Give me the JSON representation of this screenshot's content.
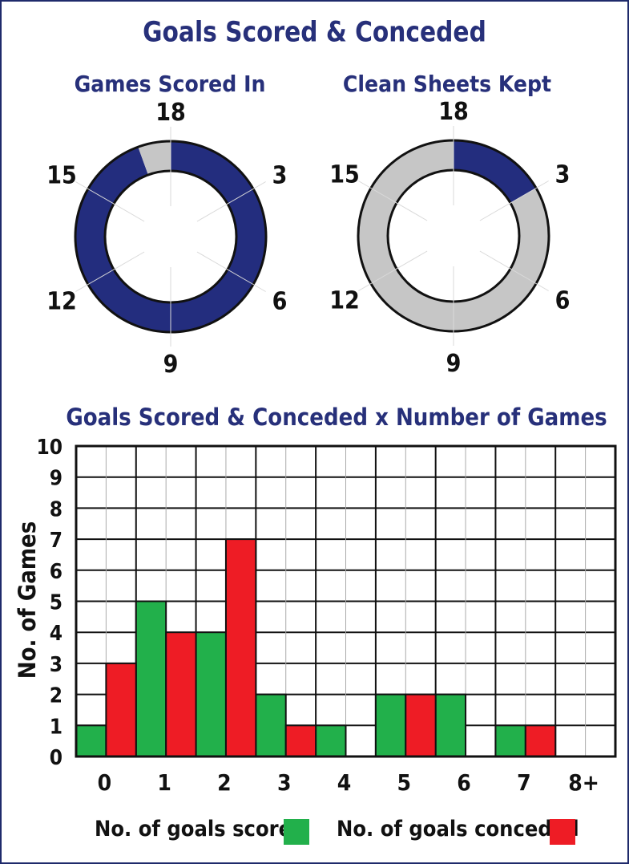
{
  "title": "Goals Scored & Conceded",
  "colors": {
    "title": "#27307a",
    "navy": "#232d7e",
    "grey": "#c6c6c6",
    "green": "#22b04b",
    "red": "#ee1c25",
    "border": "#111111"
  },
  "chart_data": [
    {
      "type": "donut",
      "title": "Games Scored In",
      "total": 18,
      "values": [
        17,
        1
      ],
      "series": [
        {
          "name": "",
          "value": 17,
          "color": "#232d7e"
        },
        {
          "name": "",
          "value": 1,
          "color": "#c6c6c6"
        }
      ],
      "tick_labels": [
        "18",
        "3",
        "6",
        "9",
        "12",
        "15"
      ]
    },
    {
      "type": "donut",
      "title": "Clean Sheets Kept",
      "total": 18,
      "values": [
        3,
        15
      ],
      "series": [
        {
          "name": "",
          "value": 3,
          "color": "#232d7e"
        },
        {
          "name": "",
          "value": 15,
          "color": "#c6c6c6"
        }
      ],
      "tick_labels": [
        "18",
        "3",
        "6",
        "9",
        "12",
        "15"
      ]
    },
    {
      "type": "bar",
      "title": "Goals Scored & Conceded x Number of Games",
      "categories": [
        "0",
        "1",
        "2",
        "3",
        "4",
        "5",
        "6",
        "7",
        "8+"
      ],
      "series": [
        {
          "name": "No. of goals scored",
          "values": [
            1,
            5,
            4,
            2,
            1,
            2,
            2,
            1,
            0
          ],
          "color": "#22b04b"
        },
        {
          "name": "No. of goals conceded",
          "values": [
            3,
            4,
            7,
            1,
            0,
            2,
            0,
            1,
            0
          ],
          "color": "#ee1c25"
        }
      ],
      "xlabel": "",
      "ylabel": "No. of Games",
      "ylim": [
        0,
        10
      ],
      "y_ticks": [
        "0",
        "1",
        "2",
        "3",
        "4",
        "5",
        "6",
        "7",
        "8",
        "9",
        "10"
      ],
      "grid": true,
      "legend": "bottom"
    }
  ]
}
